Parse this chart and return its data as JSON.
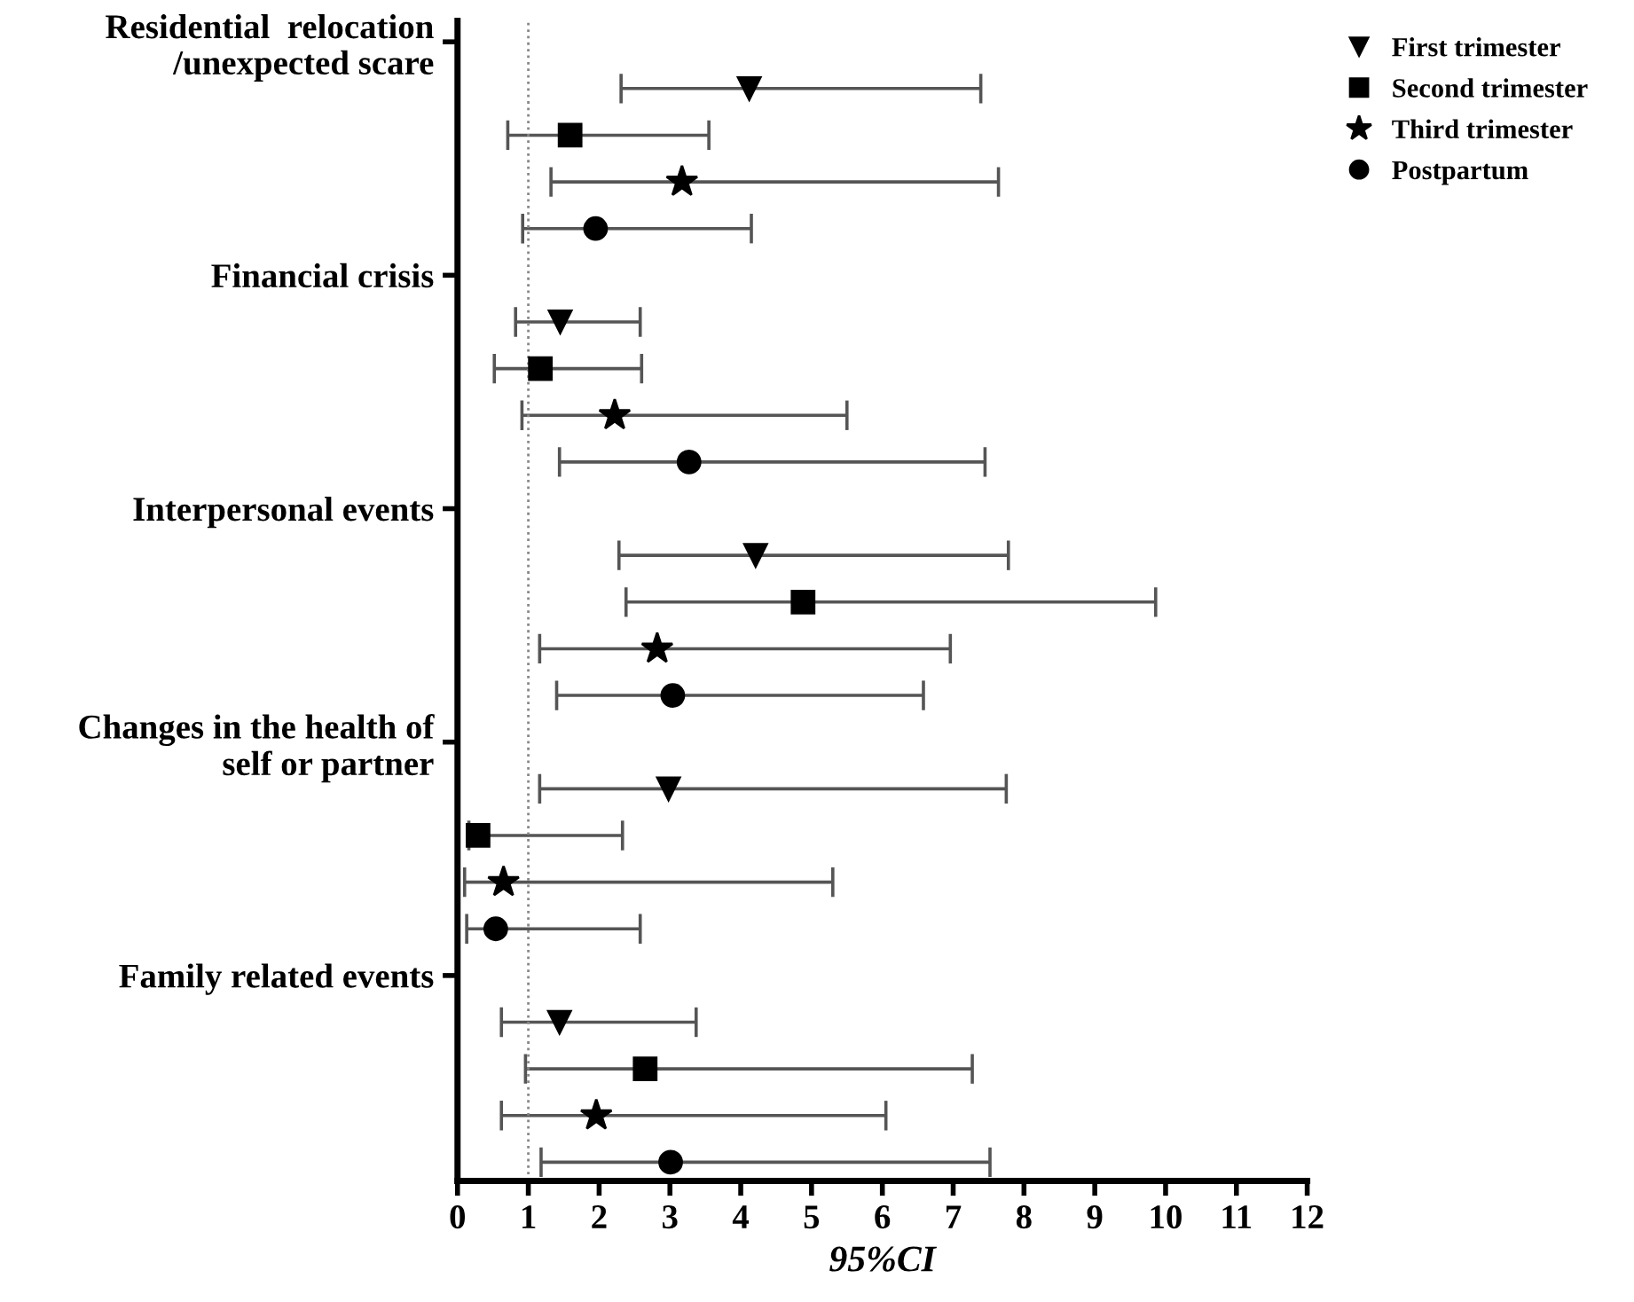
{
  "chart_data": {
    "type": "scatter",
    "orientation": "horizontal",
    "xlabel": "95%CI",
    "categories": [
      "Residential  relocation\n/unexpected scare",
      "Financial crisis",
      "Interpersonal events",
      "Changes in the health of\nself or partner",
      "Family related events"
    ],
    "series": [
      {
        "name": "First trimester",
        "color": "#000000",
        "marker": "triangle",
        "values": [
          4.12,
          1.45,
          4.21,
          2.98,
          1.44
        ],
        "errors": [
          [
            2.31,
            7.39
          ],
          [
            0.82,
            2.58
          ],
          [
            2.28,
            7.78
          ],
          [
            1.16,
            7.75
          ],
          [
            0.62,
            3.37
          ]
        ]
      },
      {
        "name": "Second trimester",
        "color": "#000000",
        "marker": "square",
        "values": [
          1.59,
          1.17,
          4.88,
          0.29,
          2.65
        ],
        "errors": [
          [
            0.71,
            3.55
          ],
          [
            0.52,
            2.6
          ],
          [
            2.38,
            9.86
          ],
          [
            0.16,
            2.33
          ],
          [
            0.96,
            7.27
          ]
        ]
      },
      {
        "name": "Third trimester",
        "color": "#000000",
        "marker": "star",
        "values": [
          3.17,
          2.22,
          2.82,
          0.65,
          1.96
        ],
        "errors": [
          [
            1.32,
            7.64
          ],
          [
            0.91,
            5.5
          ],
          [
            1.16,
            6.96
          ],
          [
            0.1,
            5.3
          ],
          [
            0.62,
            6.05
          ]
        ]
      },
      {
        "name": "Postpartum",
        "color": "#000000",
        "marker": "circle",
        "values": [
          1.95,
          3.27,
          3.04,
          0.54,
          3.01
        ],
        "errors": [
          [
            0.92,
            4.15
          ],
          [
            1.44,
            7.45
          ],
          [
            1.4,
            6.58
          ],
          [
            0.13,
            2.58
          ],
          [
            1.18,
            7.52
          ]
        ]
      }
    ],
    "xlim": [
      0,
      12
    ],
    "xticks": [
      0,
      1,
      2,
      3,
      4,
      5,
      6,
      7,
      8,
      9,
      10,
      11,
      12
    ],
    "ref_lines": [
      {
        "axis": "x",
        "value": 1,
        "color": "#888888",
        "line_style": "dotted"
      }
    ],
    "grid": false,
    "legend": "top right"
  }
}
